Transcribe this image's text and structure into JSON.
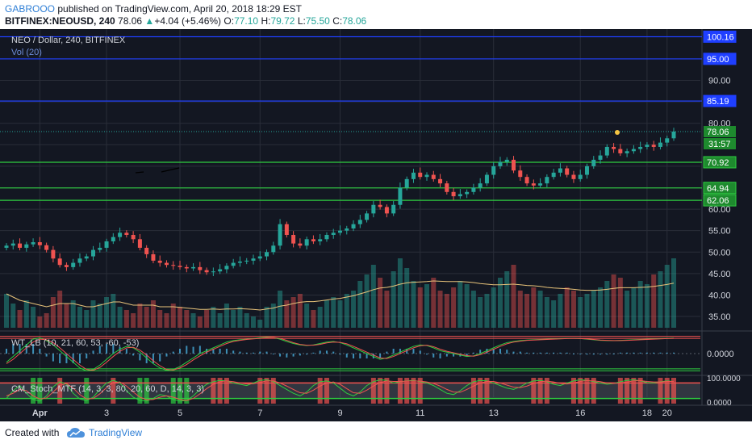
{
  "header": {
    "author": "GABROOO",
    "published_text": "published on TradingView.com, April 20, 2018 18:29 EST",
    "symbol_interval": "BITFINEX:NEOUSD, 240",
    "last": "78.06",
    "change_arrow": "▲",
    "change": "+4.04 (+5.46%)",
    "o_label": "O:",
    "o": "77.10",
    "h_label": "H:",
    "h": "79.72",
    "l_label": "L:",
    "l": "75.50",
    "c_label": "C:",
    "c": "78.06"
  },
  "footer": {
    "created_with": "Created with",
    "brand": "TradingView"
  },
  "colors": {
    "background": "#131722",
    "up": "#26a69a",
    "down": "#ef5350",
    "level_blue": "#1f3fff",
    "level_green": "#2ecc40",
    "vol_ma": "#e8c37a",
    "grid": "#2a2e39"
  },
  "chart_data": [
    {
      "type": "candlestick",
      "title": "NEO / Dollar, 240, BITFINEX",
      "volume_label": "Vol (20)",
      "y_ticks": [
        "35.00",
        "40.00",
        "45.00",
        "50.00",
        "55.00",
        "60.00",
        "65.00",
        "70.00",
        "75.00",
        "80.00",
        "85.00",
        "90.00",
        "95.00",
        "100.16"
      ],
      "y_tick_values": [
        35,
        40,
        45,
        50,
        55,
        60,
        65,
        70,
        75,
        80,
        85,
        90,
        95
      ],
      "ylim": [
        32,
        101
      ],
      "x_ticks": [
        "Apr",
        "3",
        "5",
        "7",
        "9",
        "11",
        "13",
        "16",
        "18",
        "20"
      ],
      "levels": [
        {
          "value": 100.16,
          "label": "100.16",
          "color": "blue"
        },
        {
          "value": 95.0,
          "label": "95.00",
          "color": "blue"
        },
        {
          "value": 85.19,
          "label": "85.19",
          "color": "blue"
        },
        {
          "value": 70.92,
          "label": "70.92",
          "color": "green"
        },
        {
          "value": 64.94,
          "label": "64.94",
          "color": "green"
        },
        {
          "value": 62.06,
          "label": "62.06",
          "color": "green"
        }
      ],
      "last_price": {
        "value": 78.06,
        "label": "78.06"
      },
      "countdown": "31:57",
      "closes": [
        51.5,
        52.0,
        51.0,
        51.8,
        52.3,
        51.6,
        50.5,
        48.5,
        47.0,
        46.5,
        47.5,
        48.5,
        49.0,
        50.5,
        51.0,
        52.5,
        53.5,
        54.5,
        54.0,
        53.0,
        51.0,
        49.5,
        48.0,
        47.5,
        47.0,
        46.8,
        46.5,
        46.2,
        46.5,
        45.8,
        45.3,
        45.5,
        46.0,
        46.8,
        47.5,
        47.8,
        48.0,
        48.5,
        49.0,
        50.0,
        51.5,
        56.5,
        54.0,
        52.0,
        51.5,
        53.0,
        52.5,
        53.0,
        54.0,
        54.5,
        55.0,
        55.5,
        56.5,
        57.5,
        59.0,
        61.0,
        60.5,
        59.0,
        61.0,
        65.0,
        67.0,
        68.5,
        67.5,
        68.0,
        67.0,
        66.0,
        64.0,
        63.0,
        63.5,
        64.0,
        65.0,
        66.0,
        68.0,
        70.0,
        71.0,
        71.5,
        69.0,
        67.5,
        66.0,
        65.5,
        66.0,
        67.5,
        68.5,
        69.5,
        68.0,
        67.0,
        68.0,
        70.0,
        71.5,
        72.5,
        74.5,
        74.0,
        73.0,
        73.5,
        74.0,
        74.5,
        75.0,
        74.5,
        75.5,
        76.5,
        78.06
      ],
      "volumes": [
        29,
        26,
        24,
        27,
        25,
        22,
        23,
        28,
        30,
        26,
        27,
        25,
        24,
        27,
        26,
        28,
        29,
        25,
        24,
        23,
        26,
        25,
        27,
        24,
        23,
        26,
        25,
        24,
        23,
        22,
        24,
        25,
        23,
        26,
        24,
        25,
        23,
        22,
        21,
        25,
        26,
        30,
        27,
        28,
        29,
        26,
        24,
        25,
        27,
        28,
        27,
        29,
        30,
        33,
        35,
        38,
        34,
        30,
        36,
        40,
        37,
        33,
        31,
        32,
        34,
        30,
        29,
        31,
        33,
        32,
        30,
        28,
        29,
        31,
        34,
        36,
        38,
        30,
        29,
        31,
        30,
        28,
        27,
        29,
        31,
        30,
        28,
        29,
        30,
        31,
        33,
        35,
        34,
        30,
        31,
        33,
        32,
        35,
        36,
        38,
        40
      ],
      "volume_ma": [
        29,
        28,
        27,
        26.5,
        26,
        25.5,
        25,
        25.5,
        26,
        26,
        26,
        25.5,
        25,
        25,
        25.5,
        26,
        26.5,
        26.5,
        26,
        25.5,
        25.5,
        25.5,
        25.5,
        25,
        25,
        25,
        24.8,
        24.6,
        24.4,
        24.2,
        24.2,
        24.3,
        24.2,
        24.3,
        24.3,
        24.4,
        24.3,
        24.2,
        24,
        24.3,
        24.6,
        25.2,
        25.5,
        26,
        26.4,
        26.6,
        26.6,
        26.8,
        27.1,
        27.4,
        27.6,
        28,
        28.4,
        29,
        29.6,
        30.3,
        30.8,
        31,
        31.4,
        32,
        32.4,
        32.6,
        32.7,
        32.8,
        33,
        32.9,
        32.8,
        32.8,
        32.8,
        32.7,
        32.5,
        32.2,
        32,
        31.8,
        31.8,
        31.9,
        32,
        31.8,
        31.6,
        31.5,
        31.3,
        31,
        30.8,
        30.7,
        30.6,
        30.4,
        30.2,
        30.1,
        30.1,
        30.2,
        30.4,
        30.7,
        30.9,
        30.9,
        30.9,
        31,
        31.1,
        31.3,
        31.6,
        31.9,
        32.3
      ]
    },
    {
      "type": "line",
      "title": "WT_LB (10, 21, 60, 53, -60, -53)",
      "y_ticks": [
        "0.0000"
      ],
      "series": [
        {
          "values": [
            -30,
            -10,
            10,
            30,
            50,
            55,
            45,
            30,
            10,
            -10,
            -30,
            -50,
            -60,
            -55,
            -40,
            -20,
            0,
            15,
            25,
            20,
            5,
            -15,
            -35,
            -50,
            -58,
            -55,
            -45,
            -30,
            -15,
            0,
            10,
            20,
            30,
            40,
            45,
            48,
            50,
            52,
            55,
            57,
            56,
            50,
            42,
            35,
            30,
            28,
            30,
            35,
            40,
            42,
            38,
            30,
            20,
            10,
            0,
            -10,
            -20,
            -15,
            -5,
            5,
            15,
            25,
            30,
            28,
            20,
            10,
            5,
            0,
            -5,
            -10,
            -8,
            0,
            10,
            20,
            30,
            38,
            42,
            45,
            47,
            48,
            49,
            50,
            51,
            52,
            53,
            53,
            52,
            50,
            48,
            46,
            45,
            45,
            46,
            47,
            48,
            49,
            50,
            51,
            52,
            53,
            54
          ]
        },
        {
          "values": [
            -35,
            -20,
            0,
            20,
            40,
            50,
            48,
            38,
            20,
            0,
            -20,
            -40,
            -55,
            -58,
            -48,
            -30,
            -10,
            8,
            20,
            22,
            12,
            -5,
            -25,
            -42,
            -55,
            -57,
            -50,
            -38,
            -22,
            -8,
            5,
            15,
            25,
            35,
            42,
            46,
            49,
            51,
            53,
            55,
            56,
            53,
            46,
            38,
            32,
            29,
            29,
            32,
            37,
            40,
            39,
            34,
            25,
            15,
            5,
            -5,
            -15,
            -17,
            -10,
            0,
            10,
            20,
            27,
            29,
            24,
            15,
            8,
            3,
            -2,
            -7,
            -9,
            -4,
            5,
            15,
            25,
            34,
            40,
            43,
            46,
            47,
            48,
            49,
            50,
            51,
            52,
            53,
            52,
            51,
            49,
            47,
            46,
            45,
            45,
            46,
            47,
            48,
            49,
            50,
            51,
            52,
            53
          ]
        }
      ]
    },
    {
      "type": "line",
      "title": "CM_Stoch_MTF (14, 3, 3, 80, 20, 60, D, 14, 3, 3)",
      "y_ticks": [
        "100.0000",
        "0.0000"
      ],
      "series": [
        {
          "values": [
            20,
            50,
            70,
            40,
            15,
            10,
            30,
            65,
            85,
            75,
            40,
            18,
            12,
            25,
            55,
            80,
            90,
            80,
            50,
            25,
            12,
            10,
            20,
            35,
            30,
            15,
            10,
            12,
            30,
            55,
            75,
            85,
            90,
            88,
            80,
            75,
            70,
            80,
            90,
            92,
            85,
            70,
            55,
            40,
            30,
            45,
            70,
            85,
            88,
            80,
            60,
            40,
            30,
            45,
            70,
            85,
            92,
            90,
            80,
            85,
            88,
            90,
            85,
            80,
            70,
            55,
            40,
            35,
            50,
            70,
            85,
            90,
            88,
            80,
            70,
            60,
            55,
            65,
            80,
            88,
            90,
            85,
            75,
            70,
            80,
            88,
            92,
            90,
            85,
            80,
            75,
            78,
            85,
            90,
            92,
            88,
            82,
            80,
            85,
            88,
            86
          ]
        },
        {
          "values": [
            30,
            40,
            55,
            50,
            30,
            18,
            22,
            45,
            70,
            78,
            60,
            35,
            18,
            20,
            38,
            62,
            82,
            84,
            68,
            45,
            25,
            15,
            16,
            25,
            30,
            25,
            16,
            12,
            20,
            38,
            58,
            75,
            85,
            88,
            85,
            80,
            76,
            77,
            83,
            88,
            88,
            80,
            68,
            55,
            42,
            40,
            52,
            68,
            80,
            84,
            75,
            58,
            42,
            40,
            52,
            68,
            82,
            88,
            86,
            86,
            87,
            88,
            87,
            84,
            78,
            68,
            55,
            45,
            44,
            55,
            68,
            80,
            86,
            86,
            80,
            72,
            64,
            62,
            68,
            78,
            85,
            87,
            84,
            78,
            76,
            80,
            86,
            89,
            88,
            85,
            80,
            78,
            80,
            84,
            88,
            89,
            86,
            84,
            84,
            86,
            86
          ]
        }
      ],
      "overbought": 80,
      "oversold": 20
    }
  ]
}
